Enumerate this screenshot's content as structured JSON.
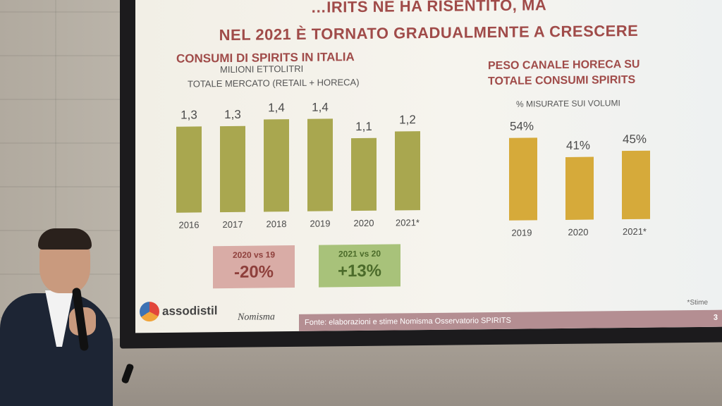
{
  "slide": {
    "headline_line1": "…IRITS NE HA RISENTITO, MA",
    "headline_line2": "NEL 2021 È TORNATO GRADUALMENTE A CRESCERE",
    "left_chart": {
      "title": "CONSUMI DI SPIRITS IN ITALIA",
      "subtitle1": "MILIONI ETTOLITRI",
      "subtitle2": "TOTALE MERCATO (RETAIL + HORECA)",
      "bar_color": "#a9a74f"
    },
    "right_chart": {
      "title1": "PESO CANALE HORECA SU",
      "title2": "TOTALE CONSUMI SPIRITS",
      "subtitle": "% MISURATE SUI VOLUMI",
      "bar_color": "#d6aa3a"
    },
    "badges": [
      {
        "label": "2020 vs 19",
        "value": "-20%",
        "color": "#d9aca6"
      },
      {
        "label": "2021 vs 20",
        "value": "+13%",
        "color": "#a8c27a"
      }
    ],
    "note": "*Stime",
    "footer_source": "Fonte: elaborazioni e stime Nomisma Osservatorio SPIRITS",
    "page_number": "3",
    "logos": {
      "assodistil": "assodistil",
      "nomisma": "Nomisma"
    }
  },
  "chart_data": [
    {
      "type": "bar",
      "title": "CONSUMI DI SPIRITS IN ITALIA",
      "categories": [
        "2016",
        "2017",
        "2018",
        "2019",
        "2020",
        "2021*"
      ],
      "values": [
        1.3,
        1.3,
        1.4,
        1.4,
        1.1,
        1.2
      ],
      "value_labels": [
        "1,3",
        "1,3",
        "1,4",
        "1,4",
        "1,1",
        "1,2"
      ],
      "ylim": [
        0,
        1.6
      ]
    },
    {
      "type": "bar",
      "title": "PESO CANALE HORECA SU TOTALE CONSUMI SPIRITS",
      "categories": [
        "2019",
        "2020",
        "2021*"
      ],
      "values": [
        54,
        41,
        45
      ],
      "value_labels": [
        "54%",
        "41%",
        "45%"
      ],
      "ylim": [
        0,
        60
      ]
    }
  ]
}
